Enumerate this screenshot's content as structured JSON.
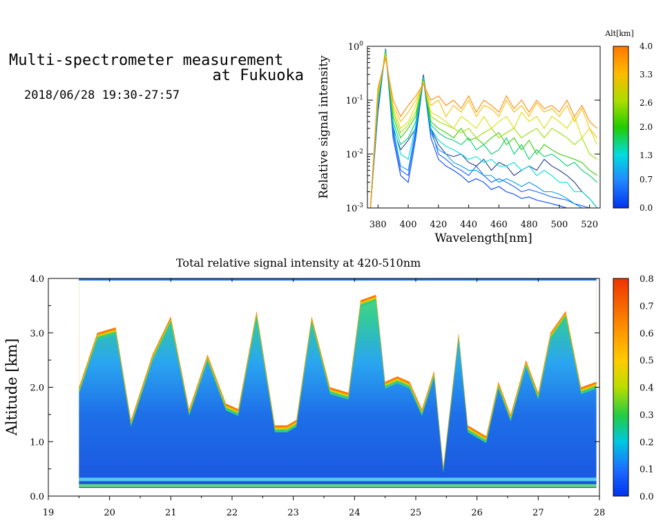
{
  "header": {
    "title_line1": "Multi-spectrometer measurement",
    "title_line2": "at Fukuoka",
    "date_range": "2018/06/28 19:30-27:57"
  },
  "chart_data": [
    {
      "type": "line",
      "xlabel": "Wavelength[nm]",
      "ylabel": "Relative signal intensity",
      "yscale": "log",
      "xlim": [
        373,
        527
      ],
      "ylim": [
        0.001,
        1
      ],
      "xticks": [
        "380",
        "400",
        "420",
        "440",
        "460",
        "480",
        "500",
        "520"
      ],
      "yticks": [
        "10^-3",
        "10^-2",
        "10^-1",
        "10^0"
      ],
      "colorbar": {
        "label": "Alt[km]",
        "ticks": [
          "0.0",
          "0.7",
          "1.3",
          "2.0",
          "2.6",
          "3.3",
          "4.0"
        ],
        "range": [
          0,
          4
        ]
      },
      "x": [
        375,
        380,
        385,
        390,
        395,
        400,
        405,
        410,
        415,
        420,
        425,
        430,
        435,
        440,
        445,
        450,
        455,
        460,
        465,
        470,
        475,
        480,
        485,
        490,
        495,
        500,
        505,
        510,
        515,
        520,
        525
      ],
      "series": [
        {
          "alt_km": 0.1,
          "color": "#0044ff",
          "values": [
            0.001,
            0.06,
            0.9,
            0.02,
            0.004,
            0.003,
            0.02,
            0.25,
            0.02,
            0.008,
            0.006,
            0.005,
            0.004,
            0.003,
            0.0035,
            0.003,
            0.0022,
            0.0025,
            0.002,
            0.0018,
            0.0015,
            0.0016,
            0.0014,
            0.0013,
            0.0012,
            0.0011,
            0.001,
            0.001,
            0.001,
            0.001,
            0.001
          ]
        },
        {
          "alt_km": 0.3,
          "color": "#1a5fff",
          "values": [
            0.001,
            0.07,
            0.9,
            0.025,
            0.005,
            0.004,
            0.025,
            0.28,
            0.03,
            0.01,
            0.008,
            0.006,
            0.005,
            0.004,
            0.006,
            0.004,
            0.003,
            0.0035,
            0.003,
            0.0025,
            0.002,
            0.0022,
            0.002,
            0.0018,
            0.0016,
            0.0015,
            0.0014,
            0.0012,
            0.0011,
            0.001,
            0.001
          ]
        },
        {
          "alt_km": 0.5,
          "color": "#1f3c8f",
          "values": [
            0.001,
            0.08,
            0.9,
            0.03,
            0.012,
            0.018,
            0.03,
            0.3,
            0.03,
            0.015,
            0.01,
            0.009,
            0.01,
            0.007,
            0.006,
            0.008,
            0.005,
            0.007,
            0.006,
            0.004,
            0.005,
            0.006,
            0.005,
            0.008,
            0.006,
            0.005,
            0.004,
            0.003,
            0.002,
            0.0015,
            0.001
          ]
        },
        {
          "alt_km": 0.9,
          "color": "#0099ee",
          "values": [
            0.001,
            0.08,
            0.85,
            0.03,
            0.006,
            0.005,
            0.03,
            0.26,
            0.025,
            0.012,
            0.01,
            0.007,
            0.006,
            0.005,
            0.005,
            0.004,
            0.004,
            0.003,
            0.0035,
            0.003,
            0.0025,
            0.003,
            0.0025,
            0.002,
            0.002,
            0.0018,
            0.0015,
            0.0012,
            0.001,
            0.001,
            0.001
          ]
        },
        {
          "alt_km": 1.3,
          "color": "#00dddd",
          "values": [
            0.001,
            0.09,
            0.85,
            0.035,
            0.01,
            0.008,
            0.035,
            0.27,
            0.03,
            0.018,
            0.014,
            0.012,
            0.01,
            0.008,
            0.009,
            0.007,
            0.008,
            0.006,
            0.006,
            0.007,
            0.005,
            0.006,
            0.004,
            0.005,
            0.004,
            0.003,
            0.003,
            0.002,
            0.002,
            0.0015,
            0.001
          ]
        },
        {
          "alt_km": 1.7,
          "color": "#00cc77",
          "values": [
            0.001,
            0.1,
            0.8,
            0.04,
            0.015,
            0.02,
            0.04,
            0.25,
            0.035,
            0.025,
            0.02,
            0.018,
            0.015,
            0.02,
            0.012,
            0.015,
            0.01,
            0.012,
            0.02,
            0.01,
            0.015,
            0.008,
            0.012,
            0.009,
            0.01,
            0.008,
            0.006,
            0.007,
            0.005,
            0.004,
            0.003
          ]
        },
        {
          "alt_km": 2.1,
          "color": "#33cc00",
          "values": [
            0.001,
            0.11,
            0.8,
            0.05,
            0.02,
            0.03,
            0.05,
            0.24,
            0.04,
            0.03,
            0.025,
            0.02,
            0.03,
            0.018,
            0.02,
            0.015,
            0.02,
            0.025,
            0.015,
            0.02,
            0.012,
            0.018,
            0.01,
            0.015,
            0.012,
            0.01,
            0.009,
            0.008,
            0.007,
            0.005,
            0.004
          ]
        },
        {
          "alt_km": 2.5,
          "color": "#99dd00",
          "values": [
            0.001,
            0.12,
            0.75,
            0.06,
            0.025,
            0.035,
            0.06,
            0.23,
            0.05,
            0.04,
            0.035,
            0.03,
            0.025,
            0.03,
            0.02,
            0.025,
            0.03,
            0.02,
            0.025,
            0.03,
            0.02,
            0.025,
            0.03,
            0.02,
            0.03,
            0.025,
            0.02,
            0.015,
            0.02,
            0.01,
            0.008
          ]
        },
        {
          "alt_km": 2.9,
          "color": "#dddd00",
          "values": [
            0.001,
            0.13,
            0.7,
            0.07,
            0.03,
            0.04,
            0.08,
            0.22,
            0.06,
            0.05,
            0.04,
            0.03,
            0.05,
            0.04,
            0.03,
            0.05,
            0.03,
            0.04,
            0.05,
            0.03,
            0.06,
            0.04,
            0.05,
            0.03,
            0.05,
            0.04,
            0.03,
            0.05,
            0.02,
            0.03,
            0.015
          ]
        },
        {
          "alt_km": 3.3,
          "color": "#ffbb00",
          "values": [
            0.001,
            0.15,
            0.65,
            0.08,
            0.04,
            0.06,
            0.1,
            0.2,
            0.08,
            0.1,
            0.05,
            0.08,
            0.06,
            0.1,
            0.05,
            0.08,
            0.07,
            0.05,
            0.1,
            0.06,
            0.08,
            0.05,
            0.09,
            0.06,
            0.07,
            0.05,
            0.08,
            0.04,
            0.07,
            0.03,
            0.02
          ]
        },
        {
          "alt_km": 3.7,
          "color": "#ff8800",
          "values": [
            0.001,
            0.17,
            0.6,
            0.1,
            0.05,
            0.08,
            0.12,
            0.2,
            0.1,
            0.12,
            0.08,
            0.1,
            0.07,
            0.12,
            0.06,
            0.1,
            0.08,
            0.06,
            0.12,
            0.07,
            0.1,
            0.06,
            0.1,
            0.07,
            0.08,
            0.06,
            0.1,
            0.05,
            0.08,
            0.04,
            0.03
          ]
        }
      ]
    },
    {
      "type": "heatmap",
      "title": "Total relative signal intensity at 420-510nm",
      "ylabel": "Altitude [km]",
      "xlim": [
        19,
        28
      ],
      "ylim": [
        0,
        4
      ],
      "xticks": [
        "19",
        "20",
        "21",
        "22",
        "23",
        "24",
        "25",
        "26",
        "27",
        "28"
      ],
      "yticks": [
        "0.0",
        "1.0",
        "2.0",
        "3.0",
        "4.0"
      ],
      "data_extent": {
        "time_start": 19.5,
        "time_end": 27.95,
        "alt_bottom": 0.15
      },
      "colorbar": {
        "ticks": [
          "0.0",
          "0.1",
          "0.2",
          "0.3",
          "0.4",
          "0.5",
          "0.6",
          "0.7",
          "0.8"
        ],
        "range": [
          0,
          0.8
        ]
      },
      "cloud_base": [
        {
          "time": 19.5,
          "alt_km": 2.0
        },
        {
          "time": 19.8,
          "alt_km": 3.0
        },
        {
          "time": 20.1,
          "alt_km": 3.1
        },
        {
          "time": 20.35,
          "alt_km": 1.4
        },
        {
          "time": 20.7,
          "alt_km": 2.6
        },
        {
          "time": 21.0,
          "alt_km": 3.3
        },
        {
          "time": 21.3,
          "alt_km": 1.6
        },
        {
          "time": 21.6,
          "alt_km": 2.6
        },
        {
          "time": 21.9,
          "alt_km": 1.7
        },
        {
          "time": 22.1,
          "alt_km": 1.6
        },
        {
          "time": 22.4,
          "alt_km": 3.4
        },
        {
          "time": 22.7,
          "alt_km": 1.3
        },
        {
          "time": 22.9,
          "alt_km": 1.3
        },
        {
          "time": 23.05,
          "alt_km": 1.4
        },
        {
          "time": 23.3,
          "alt_km": 3.3
        },
        {
          "time": 23.6,
          "alt_km": 2.0
        },
        {
          "time": 23.9,
          "alt_km": 1.9
        },
        {
          "time": 24.1,
          "alt_km": 3.6
        },
        {
          "time": 24.35,
          "alt_km": 3.7
        },
        {
          "time": 24.5,
          "alt_km": 2.1
        },
        {
          "time": 24.7,
          "alt_km": 2.2
        },
        {
          "time": 24.9,
          "alt_km": 2.1
        },
        {
          "time": 25.1,
          "alt_km": 1.6
        },
        {
          "time": 25.3,
          "alt_km": 2.3
        },
        {
          "time": 25.45,
          "alt_km": 0.55
        },
        {
          "time": 25.7,
          "alt_km": 3.0
        },
        {
          "time": 25.85,
          "alt_km": 1.3
        },
        {
          "time": 26.15,
          "alt_km": 1.1
        },
        {
          "time": 26.35,
          "alt_km": 2.1
        },
        {
          "time": 26.55,
          "alt_km": 1.5
        },
        {
          "time": 26.8,
          "alt_km": 2.5
        },
        {
          "time": 27.0,
          "alt_km": 1.9
        },
        {
          "time": 27.2,
          "alt_km": 3.0
        },
        {
          "time": 27.45,
          "alt_km": 3.4
        },
        {
          "time": 27.7,
          "alt_km": 2.0
        },
        {
          "time": 27.95,
          "alt_km": 2.1
        }
      ]
    }
  ]
}
